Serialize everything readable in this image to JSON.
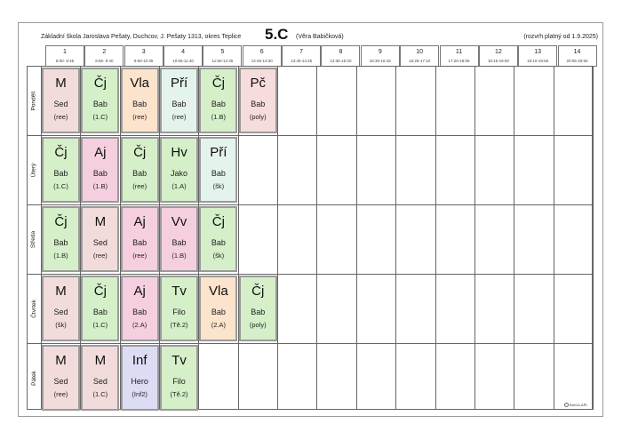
{
  "header": {
    "school": "Základní škola Jaroslava Pešaty, Duchcov, J. Pešaty 1313, okres Teplice",
    "class_name": "5.C",
    "teacher": "(Věra Babičková)",
    "validity": "(rozvrh platný od 1.9.2025)"
  },
  "periods": [
    {
      "num": "1",
      "time": "8:00- 8:45"
    },
    {
      "num": "2",
      "time": "8:55- 9:40"
    },
    {
      "num": "3",
      "time": "9:50-10:35"
    },
    {
      "num": "4",
      "time": "10:55-11:40"
    },
    {
      "num": "5",
      "time": "11:50-12:35"
    },
    {
      "num": "6",
      "time": "12:45-13:30"
    },
    {
      "num": "7",
      "time": "13:40-14:25"
    },
    {
      "num": "8",
      "time": "14:35-15:20"
    },
    {
      "num": "9",
      "time": "15:30-16:15"
    },
    {
      "num": "10",
      "time": "16:25-17:10"
    },
    {
      "num": "11",
      "time": "17:20-18:05"
    },
    {
      "num": "12",
      "time": "18:15-19:00"
    },
    {
      "num": "13",
      "time": "19:10-19:55"
    },
    {
      "num": "14",
      "time": "20:05-20:50"
    }
  ],
  "days": [
    {
      "name": "Pondělí",
      "lessons": [
        {
          "subject": "M",
          "teacher": "Sed",
          "room": "(ree)",
          "color": "#f2dcdb"
        },
        {
          "subject": "Čj",
          "teacher": "Bab",
          "room": "(1.C)",
          "color": "#d5efc9"
        },
        {
          "subject": "Vla",
          "teacher": "Bab",
          "room": "(ree)",
          "color": "#fbe3cc"
        },
        {
          "subject": "Pří",
          "teacher": "Bab",
          "room": "(ree)",
          "color": "#e4f4ec"
        },
        {
          "subject": "Čj",
          "teacher": "Bab",
          "room": "(1.B)",
          "color": "#d5efc9"
        },
        {
          "subject": "Pč",
          "teacher": "Bab",
          "room": "(poly)",
          "color": "#f7dcdc"
        }
      ]
    },
    {
      "name": "Úterý",
      "lessons": [
        {
          "subject": "Čj",
          "teacher": "Bab",
          "room": "(1.C)",
          "color": "#d5efc9"
        },
        {
          "subject": "Aj",
          "teacher": "Bab",
          "room": "(1.B)",
          "color": "#f5cfe0"
        },
        {
          "subject": "Čj",
          "teacher": "Bab",
          "room": "(ree)",
          "color": "#d5efc9"
        },
        {
          "subject": "Hv",
          "teacher": "Jako",
          "room": "(1.A)",
          "color": "#d5efc9"
        },
        {
          "subject": "Pří",
          "teacher": "Bab",
          "room": "(šk)",
          "color": "#e4f4ec"
        }
      ]
    },
    {
      "name": "Středa",
      "lessons": [
        {
          "subject": "Čj",
          "teacher": "Bab",
          "room": "(1.B)",
          "color": "#d5efc9"
        },
        {
          "subject": "M",
          "teacher": "Sed",
          "room": "(ree)",
          "color": "#f2dcdb"
        },
        {
          "subject": "Aj",
          "teacher": "Bab",
          "room": "(ree)",
          "color": "#f5cfe0"
        },
        {
          "subject": "Vv",
          "teacher": "Bab",
          "room": "(1.B)",
          "color": "#f5cfe0"
        },
        {
          "subject": "Čj",
          "teacher": "Bab",
          "room": "(šk)",
          "color": "#d5efc9"
        }
      ]
    },
    {
      "name": "Čtvrtek",
      "lessons": [
        {
          "subject": "M",
          "teacher": "Sed",
          "room": "(šk)",
          "color": "#f2dcdb"
        },
        {
          "subject": "Čj",
          "teacher": "Bab",
          "room": "(1.C)",
          "color": "#d5efc9"
        },
        {
          "subject": "Aj",
          "teacher": "Bab",
          "room": "(2.A)",
          "color": "#f5cfe0"
        },
        {
          "subject": "Tv",
          "teacher": "Filo",
          "room": "(Tě.2)",
          "color": "#d5efc9"
        },
        {
          "subject": "Vla",
          "teacher": "Bab",
          "room": "(2.A)",
          "color": "#fbe3cc"
        },
        {
          "subject": "Čj",
          "teacher": "Bab",
          "room": "(poly)",
          "color": "#d5efc9"
        }
      ]
    },
    {
      "name": "Pátek",
      "lessons": [
        {
          "subject": "M",
          "teacher": "Sed",
          "room": "(ree)",
          "color": "#f2dcdb"
        },
        {
          "subject": "M",
          "teacher": "Sed",
          "room": "(1.C)",
          "color": "#f2dcdb"
        },
        {
          "subject": "Inf",
          "teacher": "Hero",
          "room": "(Inf2)",
          "color": "#dcdcf5"
        },
        {
          "subject": "Tv",
          "teacher": "Filo",
          "room": "(Tě.2)",
          "color": "#d5efc9"
        }
      ]
    }
  ],
  "logo_text": "BAKALÁŘI",
  "logo_icon": "bakalari-logo-icon"
}
